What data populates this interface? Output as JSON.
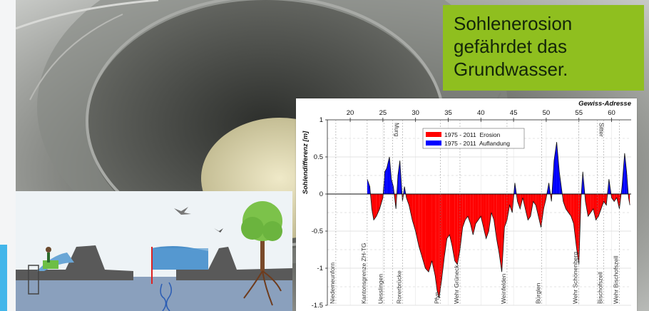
{
  "headline": {
    "lines": [
      "Sohlenerosion",
      "gefährdet das",
      "Grundwasser."
    ],
    "bg_color": "#8fbf1f"
  },
  "accent_color": "#43b6ea",
  "photo": {
    "icon": "concrete-well-shaft-photo"
  },
  "illustration": {
    "icon": "groundwater-cross-section-illustration"
  },
  "chart_data": {
    "type": "area",
    "top_axis_label": "Gewiss-Adresse",
    "ylabel": "Sohlendifferenz [m]",
    "x_ticks": [
      20,
      25,
      30,
      35,
      40,
      45,
      50,
      55,
      60
    ],
    "y_ticks": [
      1,
      0.5,
      0,
      -0.5,
      -1,
      -1.5
    ],
    "xlim": [
      16.5,
      63
    ],
    "ylim": [
      -1.5,
      1
    ],
    "grid": true,
    "legend_position": "top-center",
    "series": [
      {
        "name": "1975 - 2011  Erosion",
        "color": "#ff0000"
      },
      {
        "name": "1975 - 2011  Auflandung",
        "color": "#0000ff"
      }
    ],
    "x": [
      22.6,
      23.0,
      23.3,
      23.6,
      24.0,
      24.5,
      25.0,
      25.3,
      25.6,
      26.0,
      26.3,
      26.6,
      27.0,
      27.3,
      27.6,
      28.0,
      28.3,
      28.6,
      29.0,
      29.5,
      30.0,
      30.5,
      31.0,
      31.5,
      32.0,
      32.5,
      33.0,
      33.3,
      33.6,
      34.0,
      34.4,
      34.8,
      35.2,
      35.6,
      36.0,
      36.4,
      36.8,
      37.2,
      37.6,
      38.0,
      38.4,
      38.8,
      39.2,
      39.6,
      40.0,
      40.4,
      40.8,
      41.2,
      41.6,
      42.0,
      42.4,
      42.8,
      43.2,
      43.6,
      44.0,
      44.4,
      44.8,
      45.2,
      45.6,
      46.0,
      46.4,
      46.8,
      47.2,
      47.6,
      48.0,
      48.4,
      48.8,
      49.2,
      49.6,
      50.0,
      50.4,
      50.8,
      51.2,
      51.6,
      52.0,
      52.3,
      52.6,
      53.0,
      53.4,
      53.8,
      54.2,
      54.6,
      55.0,
      55.3,
      55.6,
      56.0,
      56.4,
      56.8,
      57.2,
      57.6,
      58.0,
      58.4,
      58.8,
      59.2,
      59.6,
      60.0,
      60.4,
      60.8,
      61.2,
      61.6,
      62.0,
      62.3,
      62.6,
      62.8
    ],
    "values": [
      0.2,
      0.1,
      -0.2,
      -0.35,
      -0.3,
      -0.2,
      -0.05,
      0.3,
      0.35,
      0.5,
      0.2,
      0.1,
      -0.2,
      0.25,
      0.45,
      -0.1,
      0.1,
      -0.05,
      -0.15,
      -0.35,
      -0.5,
      -0.7,
      -0.85,
      -1.0,
      -1.05,
      -0.9,
      -1.1,
      -1.3,
      -1.4,
      -1.15,
      -0.85,
      -0.6,
      -0.55,
      -0.7,
      -0.9,
      -0.95,
      -0.75,
      -0.45,
      -0.35,
      -0.3,
      -0.4,
      -0.55,
      -0.4,
      -0.35,
      -0.3,
      -0.45,
      -0.6,
      -0.5,
      -0.25,
      -0.35,
      -0.6,
      -0.8,
      -1.05,
      -0.45,
      -0.35,
      -0.15,
      -0.25,
      0.15,
      -0.1,
      -0.2,
      -0.05,
      -0.2,
      -0.35,
      -0.3,
      -0.1,
      -0.15,
      -0.3,
      -0.45,
      -0.2,
      -0.05,
      0.15,
      -0.1,
      0.45,
      0.7,
      0.3,
      0.1,
      -0.1,
      -0.2,
      -0.25,
      -0.3,
      -0.4,
      -0.7,
      -0.95,
      -0.1,
      0.3,
      -0.1,
      -0.3,
      -0.25,
      -0.2,
      -0.35,
      -0.3,
      -0.2,
      -0.1,
      -0.15,
      0.2,
      -0.05,
      -0.1,
      -0.05,
      -0.2,
      0.1,
      0.55,
      0.3,
      -0.05,
      -0.15
    ],
    "top_annotations": [
      {
        "label": "Murg",
        "x": 26.5
      },
      {
        "label": "Sitter",
        "x": 57.8
      }
    ],
    "bottom_annotations": [
      {
        "label": "Niedemeunforn",
        "x": 17.8
      },
      {
        "label": "Kantonsgrenze ZH-TG",
        "x": 22.6
      },
      {
        "label": "Uesslingen",
        "x": 25.2
      },
      {
        "label": "Rorerbrücke",
        "x": 28.0
      },
      {
        "label": "Pfyn",
        "x": 33.8
      },
      {
        "label": "Wehr Grüneck",
        "x": 36.8
      },
      {
        "label": "Weinfelden",
        "x": 44.0
      },
      {
        "label": "Bürglen",
        "x": 49.3
      },
      {
        "label": "Wehr Schönenberg",
        "x": 55.0
      },
      {
        "label": "Bischofszell",
        "x": 58.8
      },
      {
        "label": "Wehr Bischofszell",
        "x": 61.2
      }
    ]
  }
}
